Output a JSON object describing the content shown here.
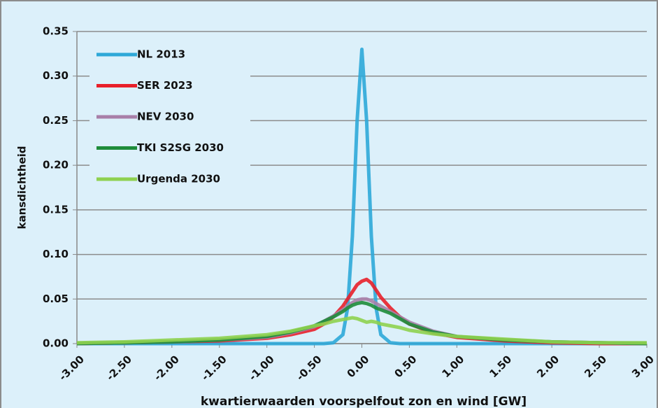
{
  "chart_data": {
    "type": "line",
    "x_label": "kwartierwaarden voorspelfout zon en wind [GW]",
    "y_label": "kansdichtheid",
    "x": [
      -3,
      -2.5,
      -2,
      -1.5,
      -1,
      -0.75,
      -0.5,
      -0.4,
      -0.3,
      -0.2,
      -0.15,
      -0.1,
      -0.05,
      0,
      0.05,
      0.1,
      0.15,
      0.2,
      0.3,
      0.4,
      0.5,
      0.75,
      1,
      1.5,
      2,
      2.5,
      3
    ],
    "series": [
      {
        "name": "NL 2013",
        "color": "#2ea8d8",
        "values": [
          0,
          0,
          0,
          0,
          0,
          0,
          0,
          0,
          0.001,
          0.01,
          0.04,
          0.12,
          0.25,
          0.33,
          0.25,
          0.12,
          0.04,
          0.01,
          0.001,
          0,
          0,
          0,
          0,
          0,
          0,
          0,
          0
        ]
      },
      {
        "name": "SER 2023",
        "color": "#e8202a",
        "values": [
          0,
          0.001,
          0.002,
          0.003,
          0.006,
          0.01,
          0.016,
          0.022,
          0.03,
          0.042,
          0.05,
          0.058,
          0.066,
          0.07,
          0.072,
          0.068,
          0.06,
          0.052,
          0.04,
          0.03,
          0.022,
          0.012,
          0.007,
          0.003,
          0.001,
          0,
          0
        ]
      },
      {
        "name": "NEV 2030",
        "color": "#a87fa8",
        "values": [
          0,
          0.001,
          0.002,
          0.004,
          0.007,
          0.012,
          0.019,
          0.025,
          0.031,
          0.038,
          0.042,
          0.046,
          0.049,
          0.05,
          0.05,
          0.048,
          0.045,
          0.042,
          0.036,
          0.03,
          0.024,
          0.014,
          0.008,
          0.004,
          0.002,
          0.001,
          0
        ]
      },
      {
        "name": "TKI S2SG 2030",
        "color": "#1e8c3a",
        "values": [
          0,
          0.001,
          0.002,
          0.004,
          0.008,
          0.013,
          0.02,
          0.025,
          0.03,
          0.036,
          0.04,
          0.043,
          0.045,
          0.046,
          0.045,
          0.043,
          0.04,
          0.038,
          0.034,
          0.028,
          0.022,
          0.013,
          0.008,
          0.004,
          0.002,
          0.001,
          0
        ]
      },
      {
        "name": "Urgenda 2030",
        "color": "#8ed14f",
        "values": [
          0.001,
          0.002,
          0.004,
          0.006,
          0.01,
          0.014,
          0.02,
          0.022,
          0.025,
          0.027,
          0.028,
          0.029,
          0.028,
          0.026,
          0.024,
          0.025,
          0.024,
          0.022,
          0.02,
          0.018,
          0.015,
          0.011,
          0.008,
          0.005,
          0.002,
          0.001,
          0.001
        ]
      }
    ],
    "xlim": [
      -3,
      3
    ],
    "xticks": [
      {
        "value": -3,
        "label": "-3.00"
      },
      {
        "value": -2.5,
        "label": "-2.50"
      },
      {
        "value": -2,
        "label": "-2.00"
      },
      {
        "value": -1.5,
        "label": "-1.50"
      },
      {
        "value": -1,
        "label": "-1.00"
      },
      {
        "value": -0.5,
        "label": "-0.50"
      },
      {
        "value": 0,
        "label": "0.00"
      },
      {
        "value": 0.5,
        "label": "0.50"
      },
      {
        "value": 1,
        "label": "1.00"
      },
      {
        "value": 1.5,
        "label": "1.50"
      },
      {
        "value": 2,
        "label": "2.00"
      },
      {
        "value": 2.5,
        "label": "2.50"
      },
      {
        "value": 3,
        "label": "3.00"
      }
    ],
    "ylim": [
      0,
      0.35
    ],
    "yticks": [
      {
        "value": 0,
        "label": "0.00"
      },
      {
        "value": 0.05,
        "label": "0.05"
      },
      {
        "value": 0.1,
        "label": "0.10"
      },
      {
        "value": 0.15,
        "label": "0.15"
      },
      {
        "value": 0.2,
        "label": "0.20"
      },
      {
        "value": 0.25,
        "label": "0.25"
      },
      {
        "value": 0.3,
        "label": "0.30"
      },
      {
        "value": 0.35,
        "label": "0.35"
      }
    ],
    "grid": true,
    "legend": "upper-left"
  }
}
